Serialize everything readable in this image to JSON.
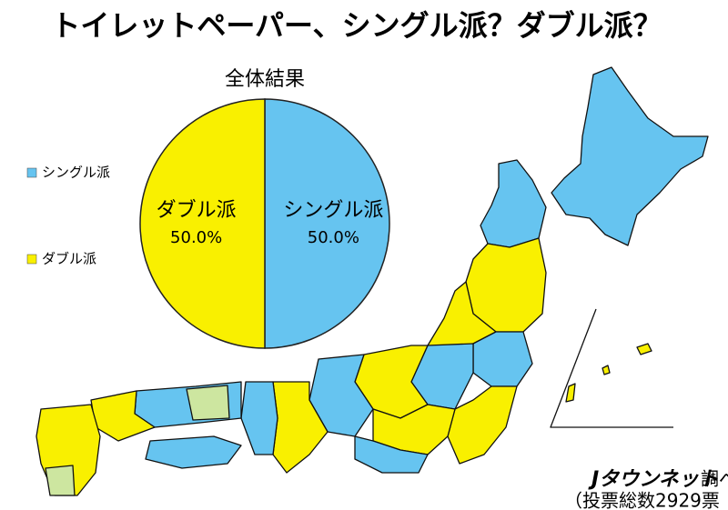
{
  "chart_data": {
    "type": "pie",
    "title": "トイレットペーパー、シングル派？ダブル派？",
    "subtitle": "全体結果",
    "categories": [
      "シングル派",
      "ダブル派"
    ],
    "values": [
      50.0,
      50.0
    ],
    "value_labels": [
      "50.0%",
      "50.0%"
    ],
    "colors": [
      "#66c4f0",
      "#f9f000"
    ]
  },
  "footer": {
    "brand": "Jタウンネット",
    "suffix": "調べ",
    "note": "（投票総数2929票"
  }
}
